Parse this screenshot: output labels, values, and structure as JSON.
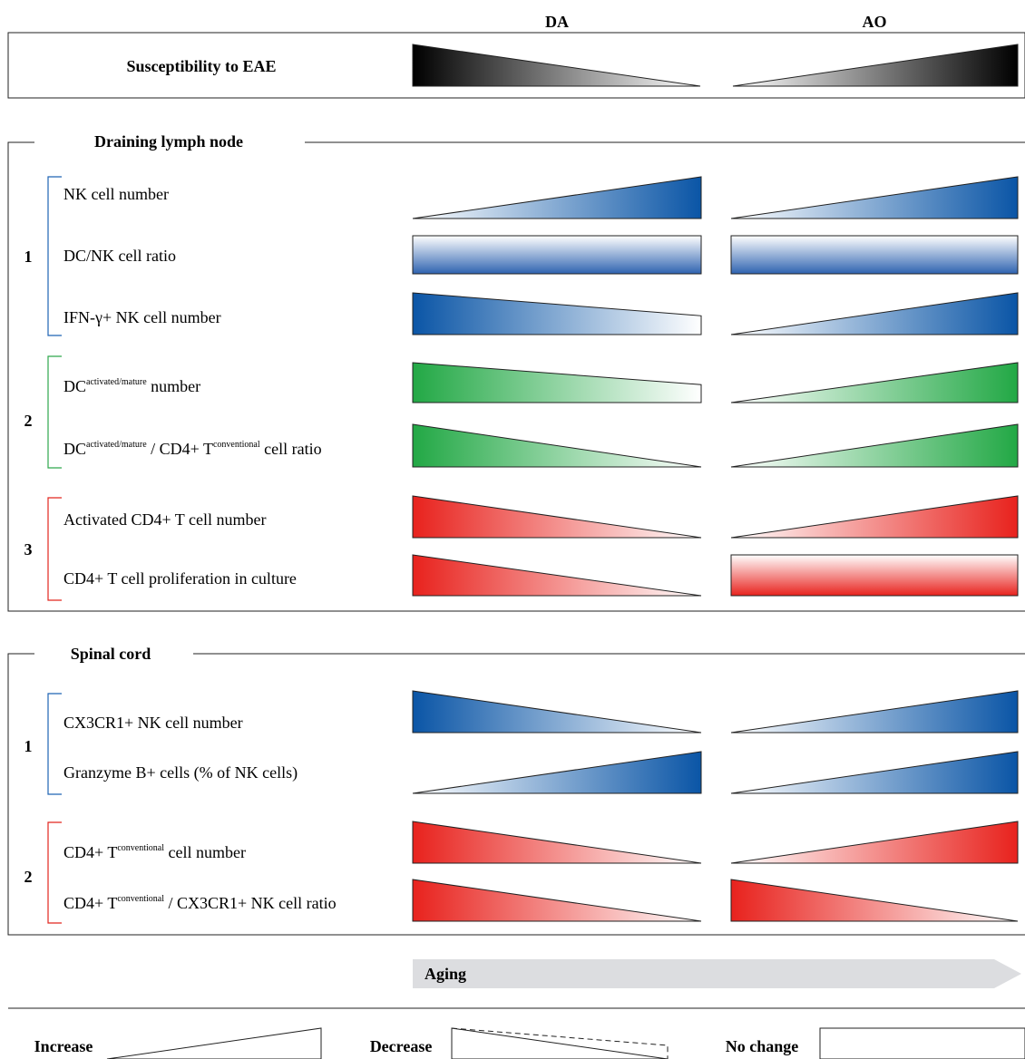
{
  "columns": {
    "left": "DA",
    "right": "AO"
  },
  "susceptibility": {
    "label": "Susceptibility to EAE"
  },
  "lymph_node": {
    "title": "Draining lymph node",
    "groups": [
      {
        "number": "1",
        "color": "#1f63b4"
      },
      {
        "number": "2",
        "color": "#2ea84c"
      },
      {
        "number": "3",
        "color": "#e2261f"
      }
    ],
    "rows": [
      {
        "label": "NK cell number",
        "da": "increase",
        "ao": "increase",
        "color": "blue"
      },
      {
        "label": "DC/NK cell ratio",
        "da": "no-change",
        "ao": "no-change",
        "color": "blue"
      },
      {
        "label": "IFN-γ+ NK cell number",
        "da": "decrease-partial",
        "ao": "increase",
        "color": "blue"
      },
      {
        "label_pre": "DC",
        "label_sup": "activated/mature",
        "label_post": " number",
        "da": "decrease-partial",
        "ao": "increase",
        "color": "green"
      },
      {
        "label_pre": "DC",
        "label_sup": "activated/mature",
        "label_mid": " / CD4+ T",
        "label_sup2": "conventional",
        "label_post": " cell ratio",
        "da": "decrease",
        "ao": "increase",
        "color": "green"
      },
      {
        "label": "Activated CD4+ T cell number",
        "da": "decrease",
        "ao": "increase",
        "color": "red"
      },
      {
        "label": "CD4+ T cell proliferation in culture",
        "da": "decrease",
        "ao": "no-change",
        "color": "red"
      }
    ]
  },
  "spinal_cord": {
    "title": "Spinal cord",
    "groups": [
      {
        "number": "1",
        "color": "#1f63b4"
      },
      {
        "number": "2",
        "color": "#e2261f"
      }
    ],
    "rows": [
      {
        "label": "CX3CR1+ NK cell number",
        "da": "decrease",
        "ao": "increase",
        "color": "blue"
      },
      {
        "label": "Granzyme B+ cells (% of NK cells)",
        "da": "increase",
        "ao": "increase",
        "color": "blue"
      },
      {
        "label_pre": "CD4+ T",
        "label_sup": "conventional",
        "label_post": " cell number",
        "da": "decrease",
        "ao": "increase",
        "color": "red"
      },
      {
        "label_pre": "CD4+ T",
        "label_sup": "conventional",
        "label_post": " / CX3CR1+ NK cell ratio",
        "da": "decrease",
        "ao": "decrease",
        "color": "red"
      }
    ]
  },
  "aging": {
    "label": "Aging"
  },
  "legend": {
    "increase": "Increase",
    "decrease": "Decrease",
    "no_change": "No change"
  },
  "colors": {
    "blue": "#0a55a6",
    "green": "#22a845",
    "red": "#e8221d"
  }
}
